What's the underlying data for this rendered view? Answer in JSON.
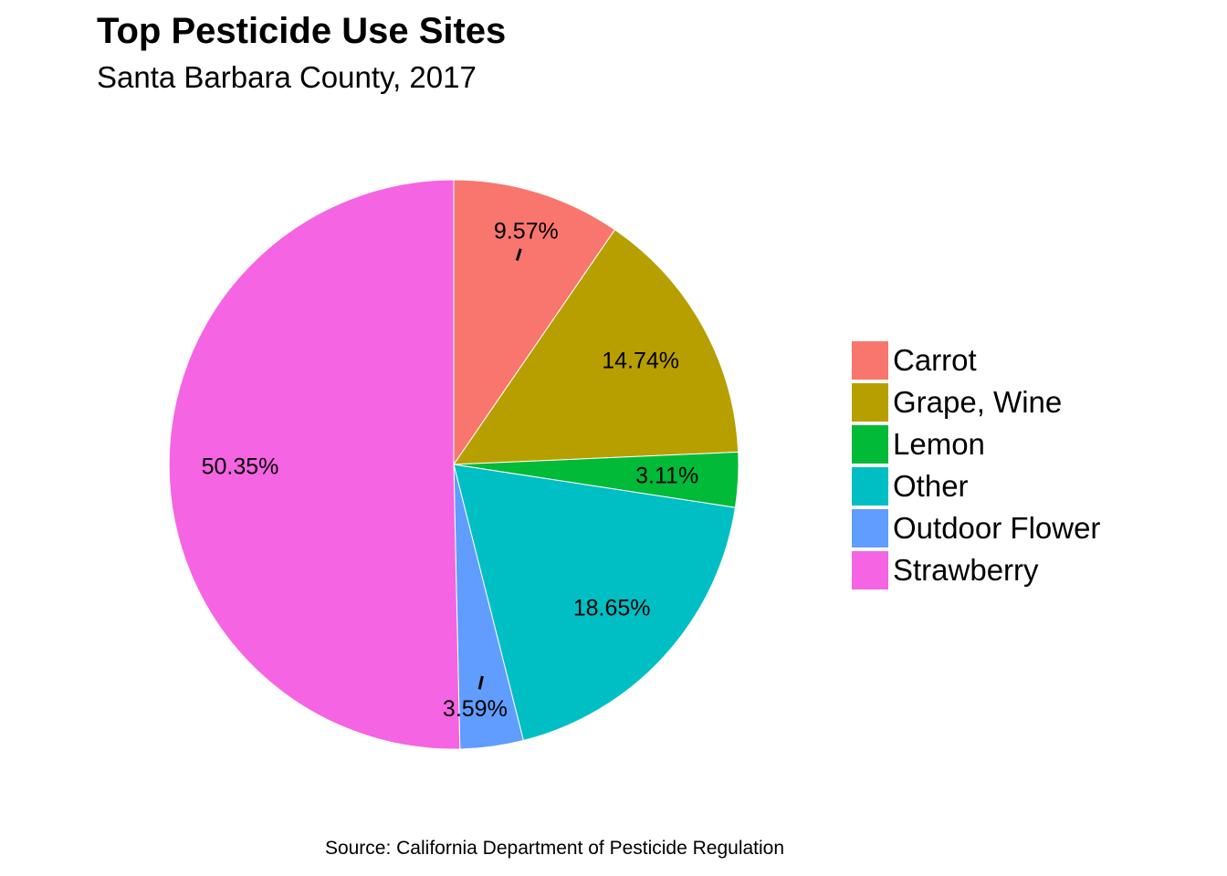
{
  "chart_data": {
    "type": "pie",
    "title": "Top Pesticide Use Sites",
    "subtitle": "Santa Barbara County, 2017",
    "caption": "Source: California Department of Pesticide Regulation",
    "legend_position": "right",
    "slices": [
      {
        "name": "Carrot",
        "value": 9.57,
        "label": "9.57%",
        "color": "#F8766D"
      },
      {
        "name": "Grape, Wine",
        "value": 14.74,
        "label": "14.74%",
        "color": "#B79F00"
      },
      {
        "name": "Lemon",
        "value": 3.11,
        "label": "3.11%",
        "color": "#00BA38"
      },
      {
        "name": "Other",
        "value": 18.65,
        "label": "18.65%",
        "color": "#00BFC4"
      },
      {
        "name": "Outdoor Flower",
        "value": 3.59,
        "label": "3.59%",
        "color": "#619CFF"
      },
      {
        "name": "Strawberry",
        "value": 50.35,
        "label": "50.35%",
        "color": "#F564E3"
      }
    ]
  }
}
